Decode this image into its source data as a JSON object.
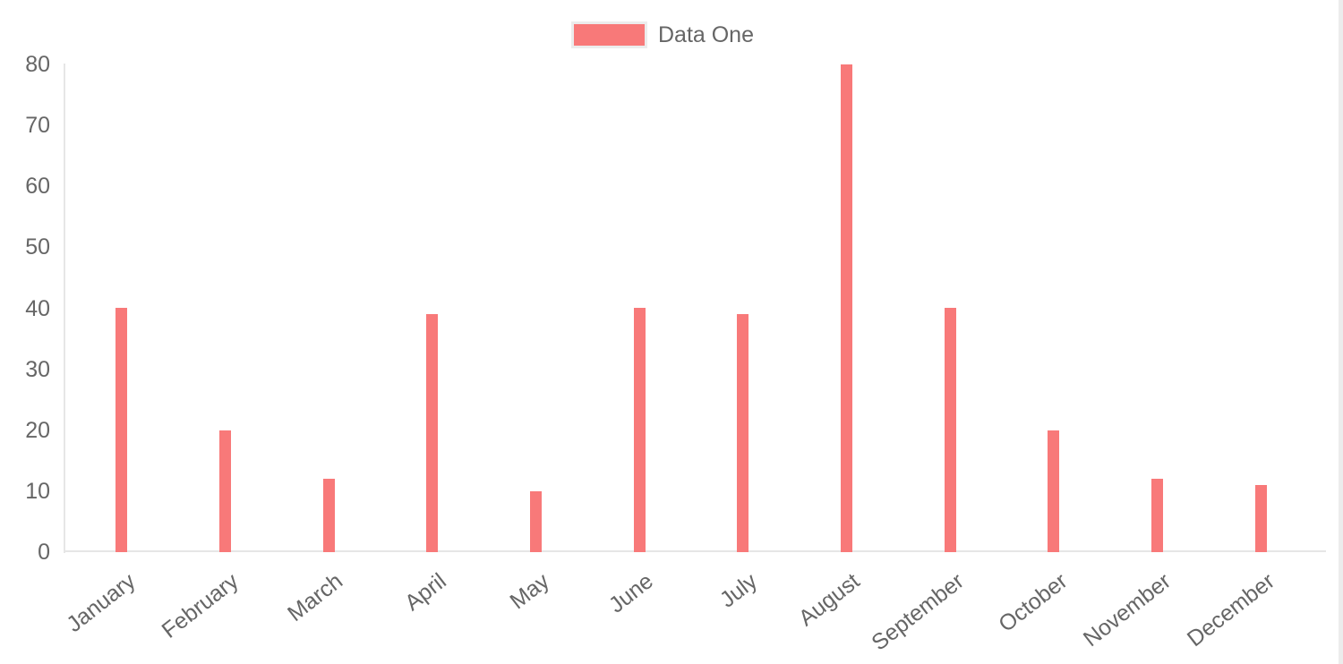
{
  "chart_data": {
    "type": "bar",
    "title": "",
    "xlabel": "",
    "ylabel": "",
    "categories": [
      "January",
      "February",
      "March",
      "April",
      "May",
      "June",
      "July",
      "August",
      "September",
      "October",
      "November",
      "December"
    ],
    "series": [
      {
        "name": "Data One",
        "color": "#f87979",
        "values": [
          40,
          20,
          12,
          39,
          10,
          40,
          39,
          80,
          40,
          20,
          12,
          11
        ]
      }
    ],
    "ylim": [
      0,
      80
    ],
    "yticks": [
      0,
      10,
      20,
      30,
      40,
      50,
      60,
      70,
      80
    ],
    "grid": false,
    "legend_position": "top",
    "x_label_rotation_deg": -38
  },
  "legend": {
    "label": "Data One"
  },
  "colors": {
    "bar": "#f87979",
    "axis_line": "#e6e6e6",
    "tick_text": "#666666",
    "legend_box_border": "#ececec",
    "scroll_track": "#ececec"
  }
}
